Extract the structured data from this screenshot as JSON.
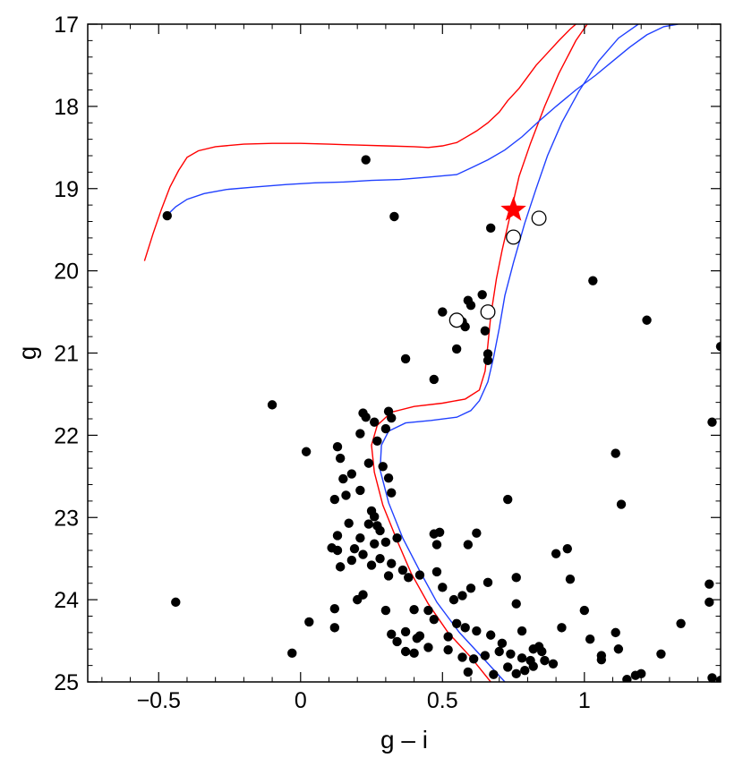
{
  "chart_data": {
    "type": "scatter",
    "xlabel": "g – i",
    "ylabel": "g",
    "xlim": [
      -0.75,
      1.48
    ],
    "ylim": [
      25,
      17
    ],
    "y_inverted": true,
    "grid": false,
    "x_ticks": [
      {
        "value": -0.5,
        "label": "−0.5"
      },
      {
        "value": 0,
        "label": "0"
      },
      {
        "value": 0.5,
        "label": "0.5"
      },
      {
        "value": 1,
        "label": "1"
      }
    ],
    "y_ticks": [
      {
        "value": 17,
        "label": "17"
      },
      {
        "value": 18,
        "label": "18"
      },
      {
        "value": 19,
        "label": "19"
      },
      {
        "value": 20,
        "label": "20"
      },
      {
        "value": 21,
        "label": "21"
      },
      {
        "value": 22,
        "label": "22"
      },
      {
        "value": 23,
        "label": "23"
      },
      {
        "value": 24,
        "label": "24"
      },
      {
        "value": 25,
        "label": "25"
      }
    ],
    "colors": {
      "isochrone_red": "#ff0000",
      "isochrone_blue": "#2040ff",
      "star": "#ff0000",
      "points": "#000000"
    },
    "series": [
      {
        "kind": "isochrone",
        "color": "#ff0000",
        "points": [
          [
            -0.55,
            19.88
          ],
          [
            -0.52,
            19.55
          ],
          [
            -0.49,
            19.25
          ],
          [
            -0.46,
            18.98
          ],
          [
            -0.43,
            18.78
          ],
          [
            -0.4,
            18.62
          ],
          [
            -0.36,
            18.54
          ],
          [
            -0.3,
            18.49
          ],
          [
            -0.2,
            18.46
          ],
          [
            -0.1,
            18.45
          ],
          [
            0.0,
            18.45
          ],
          [
            0.1,
            18.46
          ],
          [
            0.2,
            18.47
          ],
          [
            0.3,
            18.48
          ],
          [
            0.4,
            18.49
          ],
          [
            0.45,
            18.5
          ],
          [
            0.5,
            18.48
          ],
          [
            0.55,
            18.44
          ],
          [
            0.58,
            18.38
          ],
          [
            0.62,
            18.3
          ],
          [
            0.66,
            18.2
          ],
          [
            0.7,
            18.07
          ],
          [
            0.73,
            17.93
          ],
          [
            0.77,
            17.78
          ],
          [
            0.8,
            17.64
          ],
          [
            0.83,
            17.5
          ],
          [
            0.87,
            17.35
          ],
          [
            0.91,
            17.2
          ],
          [
            0.95,
            17.06
          ],
          [
            0.97,
            17.0
          ]
        ]
      },
      {
        "kind": "isochrone",
        "color": "#ff0000",
        "points": [
          [
            0.67,
            25.0
          ],
          [
            0.6,
            24.7
          ],
          [
            0.52,
            24.4
          ],
          [
            0.45,
            24.05
          ],
          [
            0.39,
            23.68
          ],
          [
            0.34,
            23.28
          ],
          [
            0.29,
            22.85
          ],
          [
            0.26,
            22.45
          ],
          [
            0.25,
            22.12
          ],
          [
            0.27,
            21.88
          ],
          [
            0.32,
            21.72
          ],
          [
            0.4,
            21.65
          ],
          [
            0.5,
            21.61
          ],
          [
            0.58,
            21.56
          ],
          [
            0.63,
            21.45
          ],
          [
            0.65,
            21.22
          ],
          [
            0.66,
            20.9
          ],
          [
            0.67,
            20.55
          ],
          [
            0.69,
            20.1
          ],
          [
            0.71,
            19.75
          ],
          [
            0.74,
            19.3
          ],
          [
            0.77,
            18.85
          ],
          [
            0.81,
            18.45
          ],
          [
            0.86,
            18.0
          ],
          [
            0.91,
            17.6
          ],
          [
            0.97,
            17.2
          ],
          [
            1.03,
            16.9
          ]
        ]
      },
      {
        "kind": "isochrone",
        "color": "#2040ff",
        "points": [
          [
            0.72,
            25.0
          ],
          [
            0.64,
            24.7
          ],
          [
            0.56,
            24.4
          ],
          [
            0.48,
            24.03
          ],
          [
            0.42,
            23.65
          ],
          [
            0.36,
            23.25
          ],
          [
            0.31,
            22.82
          ],
          [
            0.28,
            22.42
          ],
          [
            0.285,
            22.12
          ],
          [
            0.31,
            21.95
          ],
          [
            0.37,
            21.85
          ],
          [
            0.46,
            21.82
          ],
          [
            0.55,
            21.78
          ],
          [
            0.6,
            21.7
          ],
          [
            0.63,
            21.58
          ],
          [
            0.66,
            21.35
          ],
          [
            0.68,
            21.05
          ],
          [
            0.7,
            20.7
          ],
          [
            0.72,
            20.3
          ],
          [
            0.75,
            19.9
          ],
          [
            0.79,
            19.42
          ],
          [
            0.83,
            19.0
          ],
          [
            0.87,
            18.6
          ],
          [
            0.92,
            18.2
          ],
          [
            0.98,
            17.82
          ],
          [
            1.05,
            17.45
          ],
          [
            1.12,
            17.17
          ],
          [
            1.19,
            17.0
          ],
          [
            1.25,
            16.93
          ]
        ]
      },
      {
        "kind": "isochrone",
        "color": "#2040ff",
        "points": [
          [
            -0.47,
            19.32
          ],
          [
            -0.44,
            19.22
          ],
          [
            -0.4,
            19.13
          ],
          [
            -0.34,
            19.06
          ],
          [
            -0.26,
            19.01
          ],
          [
            -0.16,
            18.98
          ],
          [
            -0.05,
            18.95
          ],
          [
            0.05,
            18.93
          ],
          [
            0.15,
            18.92
          ],
          [
            0.25,
            18.9
          ],
          [
            0.35,
            18.89
          ],
          [
            0.45,
            18.86
          ],
          [
            0.55,
            18.83
          ],
          [
            0.6,
            18.75
          ],
          [
            0.66,
            18.65
          ],
          [
            0.72,
            18.53
          ],
          [
            0.78,
            18.37
          ],
          [
            0.84,
            18.18
          ],
          [
            0.9,
            18.0
          ],
          [
            0.97,
            17.8
          ],
          [
            1.04,
            17.62
          ],
          [
            1.1,
            17.45
          ],
          [
            1.16,
            17.28
          ],
          [
            1.22,
            17.13
          ],
          [
            1.28,
            17.03
          ],
          [
            1.33,
            17.0
          ]
        ]
      },
      {
        "kind": "filled_points",
        "points": [
          [
            -0.47,
            19.33
          ],
          [
            0.23,
            18.65
          ],
          [
            0.33,
            19.34
          ],
          [
            0.67,
            19.48
          ],
          [
            -0.1,
            21.63
          ],
          [
            -0.44,
            24.03
          ],
          [
            0.02,
            22.2
          ],
          [
            -0.03,
            24.65
          ],
          [
            0.03,
            24.27
          ],
          [
            0.5,
            20.5
          ],
          [
            0.57,
            20.62
          ],
          [
            0.6,
            20.42
          ],
          [
            0.64,
            20.29
          ],
          [
            0.59,
            20.36
          ],
          [
            0.58,
            20.68
          ],
          [
            0.65,
            20.73
          ],
          [
            0.55,
            20.95
          ],
          [
            0.66,
            21.01
          ],
          [
            0.66,
            21.09
          ],
          [
            0.37,
            21.07
          ],
          [
            0.47,
            21.32
          ],
          [
            1.03,
            20.12
          ],
          [
            1.22,
            20.6
          ],
          [
            1.48,
            20.92
          ],
          [
            1.45,
            21.84
          ],
          [
            0.22,
            21.73
          ],
          [
            0.23,
            21.78
          ],
          [
            0.26,
            21.84
          ],
          [
            0.31,
            21.71
          ],
          [
            0.32,
            21.79
          ],
          [
            0.3,
            21.92
          ],
          [
            0.21,
            21.98
          ],
          [
            0.27,
            22.07
          ],
          [
            0.13,
            22.14
          ],
          [
            0.14,
            22.28
          ],
          [
            0.24,
            22.34
          ],
          [
            0.29,
            22.38
          ],
          [
            0.18,
            22.47
          ],
          [
            0.31,
            22.52
          ],
          [
            0.15,
            22.53
          ],
          [
            0.12,
            22.78
          ],
          [
            0.16,
            22.73
          ],
          [
            0.21,
            22.67
          ],
          [
            0.32,
            22.7
          ],
          [
            0.25,
            22.92
          ],
          [
            0.26,
            22.99
          ],
          [
            0.17,
            23.07
          ],
          [
            0.24,
            23.08
          ],
          [
            0.27,
            23.1
          ],
          [
            0.28,
            23.16
          ],
          [
            0.13,
            23.22
          ],
          [
            0.21,
            23.25
          ],
          [
            0.11,
            23.37
          ],
          [
            0.13,
            23.4
          ],
          [
            0.19,
            23.38
          ],
          [
            0.26,
            23.32
          ],
          [
            0.3,
            23.3
          ],
          [
            0.34,
            23.25
          ],
          [
            0.22,
            23.45
          ],
          [
            0.28,
            23.5
          ],
          [
            0.18,
            23.52
          ],
          [
            0.25,
            23.58
          ],
          [
            0.32,
            23.56
          ],
          [
            0.36,
            23.64
          ],
          [
            0.31,
            23.71
          ],
          [
            0.38,
            23.73
          ],
          [
            0.42,
            23.7
          ],
          [
            0.48,
            23.66
          ],
          [
            0.47,
            23.2
          ],
          [
            0.49,
            23.18
          ],
          [
            0.48,
            23.33
          ],
          [
            0.59,
            23.33
          ],
          [
            0.62,
            23.19
          ],
          [
            0.73,
            22.78
          ],
          [
            0.66,
            23.79
          ],
          [
            0.6,
            23.86
          ],
          [
            0.57,
            23.95
          ],
          [
            0.54,
            24.0
          ],
          [
            0.5,
            23.85
          ],
          [
            0.45,
            24.13
          ],
          [
            0.4,
            24.12
          ],
          [
            0.47,
            24.24
          ],
          [
            0.55,
            24.29
          ],
          [
            0.58,
            24.34
          ],
          [
            0.62,
            24.38
          ],
          [
            0.67,
            24.43
          ],
          [
            0.52,
            24.45
          ],
          [
            0.42,
            24.44
          ],
          [
            0.37,
            24.39
          ],
          [
            0.32,
            24.42
          ],
          [
            0.34,
            24.51
          ],
          [
            0.45,
            24.58
          ],
          [
            0.37,
            24.63
          ],
          [
            0.4,
            24.65
          ],
          [
            0.52,
            24.61
          ],
          [
            0.57,
            24.7
          ],
          [
            0.61,
            24.72
          ],
          [
            0.65,
            24.68
          ],
          [
            0.7,
            24.63
          ],
          [
            0.74,
            24.66
          ],
          [
            0.78,
            24.71
          ],
          [
            0.71,
            24.53
          ],
          [
            0.73,
            24.82
          ],
          [
            0.76,
            24.9
          ],
          [
            0.79,
            24.86
          ],
          [
            0.81,
            24.74
          ],
          [
            0.82,
            24.6
          ],
          [
            0.85,
            24.63
          ],
          [
            0.82,
            24.81
          ],
          [
            0.86,
            24.74
          ],
          [
            0.89,
            24.78
          ],
          [
            0.76,
            23.73
          ],
          [
            0.76,
            24.05
          ],
          [
            0.78,
            24.38
          ],
          [
            0.9,
            23.44
          ],
          [
            0.94,
            23.38
          ],
          [
            0.92,
            24.34
          ],
          [
            0.95,
            23.75
          ],
          [
            1.0,
            24.13
          ],
          [
            1.02,
            24.48
          ],
          [
            1.11,
            24.4
          ],
          [
            1.12,
            24.6
          ],
          [
            1.06,
            24.68
          ],
          [
            1.06,
            24.73
          ],
          [
            1.15,
            24.97
          ],
          [
            1.18,
            24.92
          ],
          [
            1.2,
            24.9
          ],
          [
            1.27,
            24.66
          ],
          [
            1.34,
            24.29
          ],
          [
            1.44,
            23.81
          ],
          [
            1.44,
            24.03
          ],
          [
            1.45,
            24.95
          ],
          [
            1.48,
            24.98
          ],
          [
            1.13,
            22.84
          ],
          [
            1.11,
            22.22
          ],
          [
            0.84,
            24.57
          ],
          [
            0.68,
            24.91
          ],
          [
            0.59,
            24.88
          ],
          [
            0.41,
            24.47
          ],
          [
            0.3,
            24.13
          ],
          [
            0.2,
            24.0
          ],
          [
            0.12,
            24.11
          ],
          [
            0.12,
            24.34
          ],
          [
            0.22,
            23.94
          ],
          [
            0.14,
            23.6
          ]
        ]
      },
      {
        "kind": "open_circles",
        "points": [
          [
            0.84,
            19.36
          ],
          [
            0.75,
            19.59
          ],
          [
            0.55,
            20.6
          ],
          [
            0.66,
            20.5
          ]
        ]
      },
      {
        "kind": "highlight_star",
        "color": "#ff0000",
        "points": [
          [
            0.75,
            19.26
          ]
        ]
      }
    ]
  }
}
